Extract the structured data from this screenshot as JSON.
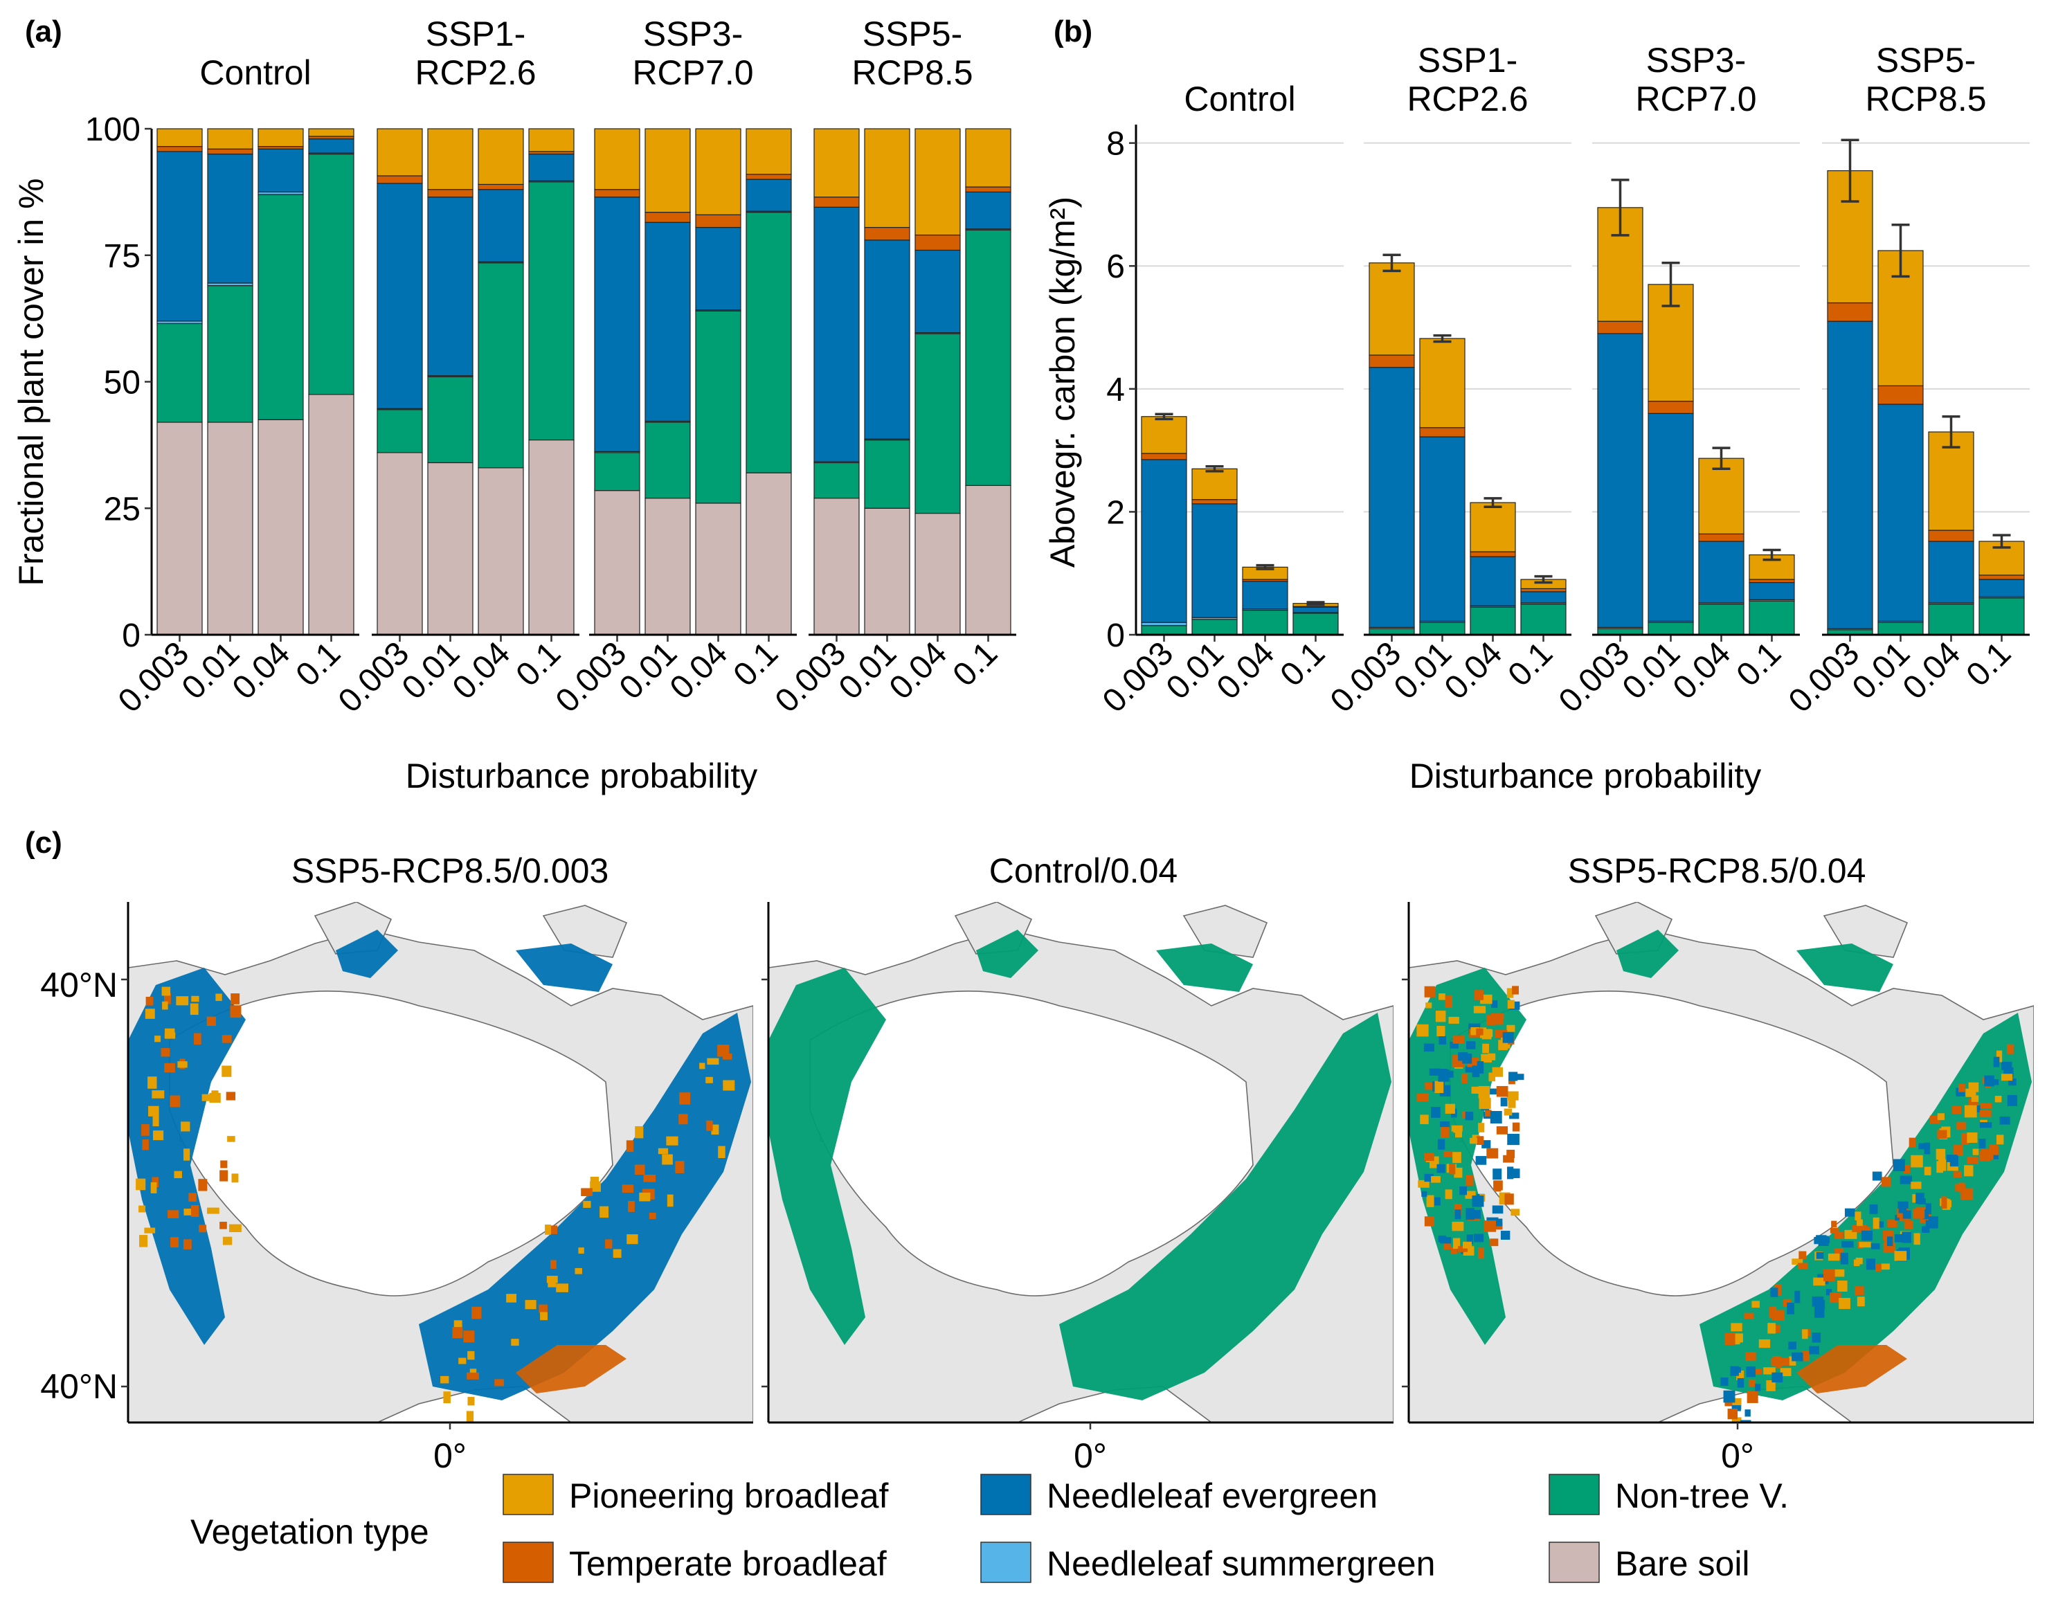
{
  "panel_labels": [
    "(a)",
    "(b)",
    "(c)"
  ],
  "colors": {
    "Pioneering broadleaf": "#E69F00",
    "Temperate broadleaf": "#D55E00",
    "Needleleaf evergreen": "#0072B2",
    "Needleleaf summergreen": "#56B4E9",
    "Non-tree V.": "#009E73",
    "Bare soil": "#CDB8B5",
    "map_land": "#E5E5E5"
  },
  "chart_data": [
    {
      "panel": "(a)",
      "type": "bar",
      "stacked": true,
      "facets": [
        {
          "label_lines": [
            "Control"
          ]
        },
        {
          "label_lines": [
            "SSP1-",
            "RCP2.6"
          ]
        },
        {
          "label_lines": [
            "SSP3-",
            "RCP7.0"
          ]
        },
        {
          "label_lines": [
            "SSP5-",
            "RCP8.5"
          ]
        }
      ],
      "categories": [
        "0.003",
        "0.01",
        "0.04",
        "0.1"
      ],
      "xlabel": "Disturbance probability",
      "ylabel": "Fractional plant cover in %",
      "ylim": [
        0,
        100
      ],
      "yticks": [
        "0",
        "25",
        "50",
        "75",
        "100"
      ],
      "grid": false,
      "stack_order": [
        "Bare soil",
        "Non-tree V.",
        "Needleleaf summergreen",
        "Needleleaf evergreen",
        "Temperate broadleaf",
        "Pioneering broadleaf"
      ],
      "values": [
        [
          [
            42,
            19.5,
            0.5,
            33.5,
            1,
            3.5
          ],
          [
            42,
            27,
            0.5,
            25.5,
            1,
            4
          ],
          [
            42.5,
            44.5,
            0.5,
            8.5,
            0.5,
            3.5
          ],
          [
            47.5,
            47.5,
            0.2,
            2.8,
            0.5,
            1.5
          ]
        ],
        [
          [
            36,
            8.5,
            0.2,
            44.5,
            1.5,
            9.3
          ],
          [
            34,
            17,
            0.2,
            35.3,
            1.5,
            12
          ],
          [
            33,
            40.5,
            0.2,
            14.3,
            1,
            11
          ],
          [
            38.5,
            51,
            0.2,
            5.3,
            0.5,
            4.5
          ]
        ],
        [
          [
            28.5,
            7.5,
            0.2,
            50.3,
            1.5,
            12
          ],
          [
            27,
            15,
            0.2,
            39.3,
            2,
            16.5
          ],
          [
            26,
            38,
            0.2,
            16.3,
            2.5,
            17
          ],
          [
            32,
            51.5,
            0.2,
            6.3,
            1,
            9
          ]
        ],
        [
          [
            27,
            7,
            0.2,
            50.3,
            2,
            13.5
          ],
          [
            25,
            13.5,
            0.2,
            39.3,
            2.5,
            19.5
          ],
          [
            24,
            35.5,
            0.2,
            16.3,
            3,
            21
          ],
          [
            29.5,
            50.5,
            0.2,
            7.3,
            1,
            11.5
          ]
        ]
      ]
    },
    {
      "panel": "(b)",
      "type": "bar",
      "stacked": true,
      "facets": [
        {
          "label_lines": [
            "Control"
          ]
        },
        {
          "label_lines": [
            "SSP1-",
            "RCP2.6"
          ]
        },
        {
          "label_lines": [
            "SSP3-",
            "RCP7.0"
          ]
        },
        {
          "label_lines": [
            "SSP5-",
            "RCP8.5"
          ]
        }
      ],
      "categories": [
        "0.003",
        "0.01",
        "0.04",
        "0.1"
      ],
      "xlabel": "Disturbance probability",
      "ylabel": "Abovegr. carbon (kg/m²)",
      "ylim": [
        0,
        8.3
      ],
      "yticks": [
        "0",
        "2",
        "4",
        "6",
        "8"
      ],
      "grid": true,
      "stack_order": [
        "Non-tree V.",
        "Needleleaf summergreen",
        "Needleleaf evergreen",
        "Temperate broadleaf",
        "Pioneering broadleaf"
      ],
      "values": [
        [
          [
            0.15,
            0.05,
            2.65,
            0.1,
            0.6
          ],
          [
            0.25,
            0.03,
            1.85,
            0.07,
            0.5
          ],
          [
            0.4,
            0.02,
            0.45,
            0.03,
            0.2
          ],
          [
            0.35,
            0.01,
            0.09,
            0.01,
            0.05
          ]
        ],
        [
          [
            0.1,
            0.02,
            4.23,
            0.2,
            1.5
          ],
          [
            0.2,
            0.02,
            3.0,
            0.15,
            1.45
          ],
          [
            0.45,
            0.02,
            0.8,
            0.08,
            0.8
          ],
          [
            0.5,
            0.02,
            0.18,
            0.05,
            0.15
          ]
        ],
        [
          [
            0.1,
            0.02,
            4.78,
            0.2,
            1.85
          ],
          [
            0.2,
            0.02,
            3.38,
            0.2,
            1.9
          ],
          [
            0.5,
            0.02,
            1.0,
            0.12,
            1.23
          ],
          [
            0.55,
            0.02,
            0.28,
            0.05,
            0.4
          ]
        ],
        [
          [
            0.08,
            0.02,
            5.0,
            0.3,
            2.15
          ],
          [
            0.2,
            0.02,
            3.53,
            0.3,
            2.2
          ],
          [
            0.5,
            0.02,
            1.0,
            0.18,
            1.6
          ],
          [
            0.6,
            0.02,
            0.28,
            0.07,
            0.55
          ]
        ]
      ],
      "error_bars": [
        [
          0.04,
          0.04,
          0.03,
          0.02
        ],
        [
          0.13,
          0.05,
          0.07,
          0.05
        ],
        [
          0.45,
          0.35,
          0.17,
          0.08
        ],
        [
          0.5,
          0.42,
          0.25,
          0.1
        ]
      ]
    }
  ],
  "maps": {
    "panel": "(c)",
    "titles": [
      "SSP5-RCP8.5/0.003",
      "Control/0.04",
      "SSP5-RCP8.5/0.04"
    ],
    "lat_label_top": "40°N",
    "lat_label_bottom": "40°N",
    "lon_label": "0°",
    "dominant_type": [
      "Needleleaf evergreen",
      "Non-tree V.",
      "Non-tree V."
    ]
  },
  "legend": {
    "title": "Vegetation type",
    "items": [
      "Pioneering broadleaf",
      "Temperate broadleaf",
      "Needleleaf evergreen",
      "Needleleaf summergreen",
      "Non-tree V.",
      "Bare soil"
    ]
  }
}
